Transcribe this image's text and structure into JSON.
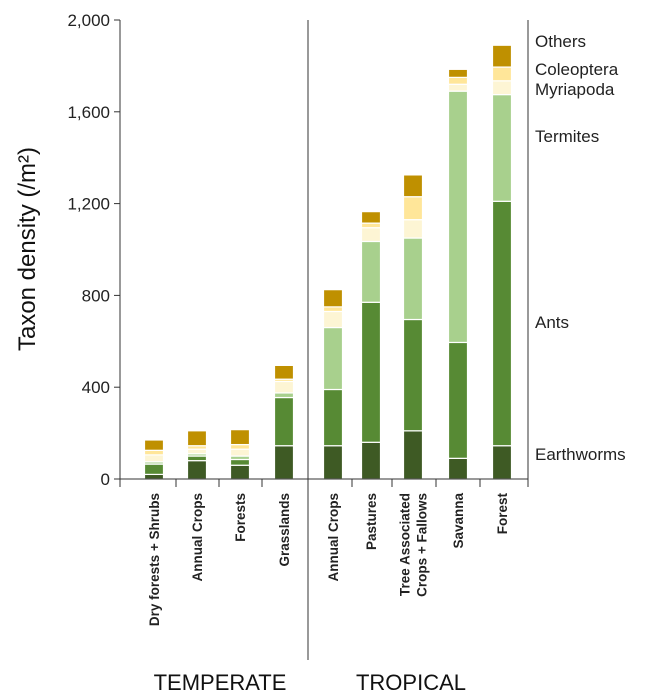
{
  "chart_data": {
    "type": "bar",
    "stacked": true,
    "ylabel": "Taxon density (/m²)",
    "ylim": [
      0,
      2000
    ],
    "yticks": [
      0,
      400,
      800,
      1200,
      1600,
      2000
    ],
    "ytick_labels": [
      "0",
      "400",
      "800",
      "1,200",
      "1,600",
      "2,000"
    ],
    "grid": false,
    "legend_placement": "right",
    "categories": [
      [
        "Dry forests + Shrubs"
      ],
      [
        "Annual Crops"
      ],
      [
        "Forests"
      ],
      [
        "Grasslands"
      ],
      [
        "Annual Crops"
      ],
      [
        "Pastures"
      ],
      [
        "Tree Associated",
        "Crops + Fallows"
      ],
      [
        "Savanna"
      ],
      [
        "Forest"
      ]
    ],
    "groups": [
      {
        "label": "TEMPERATE",
        "categories": [
          0,
          1,
          2,
          3
        ]
      },
      {
        "label": "TROPICAL",
        "categories": [
          4,
          5,
          6,
          7,
          8
        ]
      }
    ],
    "series": [
      {
        "name": "Earthworms",
        "color": "#3e5a24",
        "values": [
          20,
          80,
          60,
          145,
          145,
          160,
          210,
          90,
          145
        ]
      },
      {
        "name": "Ants",
        "color": "#578a34",
        "values": [
          45,
          20,
          25,
          210,
          245,
          610,
          485,
          505,
          1065
        ]
      },
      {
        "name": "Termites",
        "color": "#a8d08d",
        "values": [
          10,
          10,
          15,
          20,
          270,
          265,
          355,
          1095,
          465
        ]
      },
      {
        "name": "Myriapoda",
        "color": "#fdf5d4",
        "values": [
          30,
          20,
          30,
          50,
          70,
          60,
          80,
          30,
          60
        ]
      },
      {
        "name": "Coleoptera",
        "color": "#ffe699",
        "values": [
          20,
          15,
          20,
          10,
          20,
          20,
          100,
          30,
          60
        ]
      },
      {
        "name": "Others",
        "color": "#bf9000",
        "values": [
          45,
          65,
          65,
          60,
          75,
          50,
          95,
          35,
          95
        ]
      }
    ]
  }
}
